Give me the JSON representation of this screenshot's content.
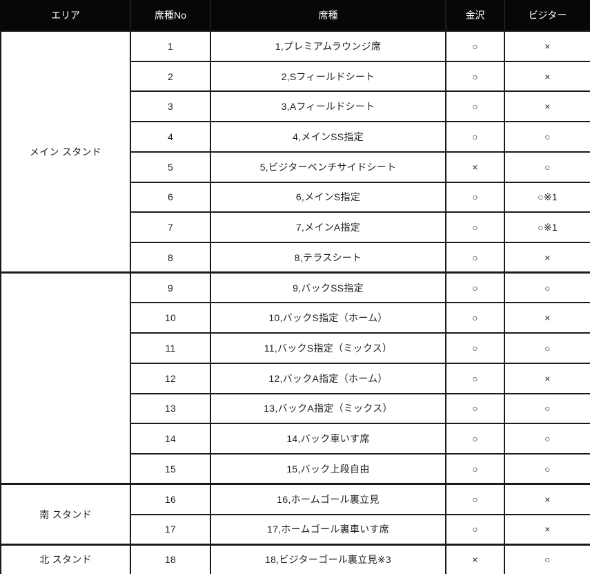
{
  "header": {
    "columns": [
      "エリア",
      "席種No",
      "席種",
      "金沢",
      "ビジター"
    ]
  },
  "areas": [
    {
      "label": "メイン スタンド",
      "row_span": 8
    },
    {
      "label": "",
      "row_span": 7
    },
    {
      "label": "南 スタンド",
      "row_span": 2
    },
    {
      "label": "北 スタンド",
      "row_span": 1
    }
  ],
  "rows": [
    {
      "no": "1",
      "seat_name": "1,プレミアムラウンジ席",
      "kanazawa": "○",
      "visitor": "×"
    },
    {
      "no": "2",
      "seat_name": "2,Sフィールドシート",
      "kanazawa": "○",
      "visitor": "×"
    },
    {
      "no": "3",
      "seat_name": "3,Aフィールドシート",
      "kanazawa": "○",
      "visitor": "×"
    },
    {
      "no": "4",
      "seat_name": "4,メインSS指定",
      "kanazawa": "○",
      "visitor": "○"
    },
    {
      "no": "5",
      "seat_name": "5,ビジターベンチサイドシート",
      "kanazawa": "×",
      "visitor": "○"
    },
    {
      "no": "6",
      "seat_name": "6,メインS指定",
      "kanazawa": "○",
      "visitor": "○※1"
    },
    {
      "no": "7",
      "seat_name": "7,メインA指定",
      "kanazawa": "○",
      "visitor": "○※1"
    },
    {
      "no": "8",
      "seat_name": "8,テラスシート",
      "kanazawa": "○",
      "visitor": "×"
    },
    {
      "no": "9",
      "seat_name": "9,バックSS指定",
      "kanazawa": "○",
      "visitor": "○"
    },
    {
      "no": "10",
      "seat_name": "10,バックS指定（ホーム）",
      "kanazawa": "○",
      "visitor": "×"
    },
    {
      "no": "11",
      "seat_name": "11,バックS指定（ミックス）",
      "kanazawa": "○",
      "visitor": "○"
    },
    {
      "no": "12",
      "seat_name": "12,バックA指定（ホーム）",
      "kanazawa": "○",
      "visitor": "×"
    },
    {
      "no": "13",
      "seat_name": "13,バックA指定（ミックス）",
      "kanazawa": "○",
      "visitor": "○"
    },
    {
      "no": "14",
      "seat_name": "14,バック車いす席",
      "kanazawa": "○",
      "visitor": "○"
    },
    {
      "no": "15",
      "seat_name": "15,バック上段自由",
      "kanazawa": "○",
      "visitor": "○"
    },
    {
      "no": "16",
      "seat_name": "16,ホームゴール裏立見",
      "kanazawa": "○",
      "visitor": "×"
    },
    {
      "no": "17",
      "seat_name": "17,ホームゴール裏車いす席",
      "kanazawa": "○",
      "visitor": "×"
    },
    {
      "no": "18",
      "seat_name": "18,ビジターゴール裏立見※3",
      "kanazawa": "×",
      "visitor": "○"
    }
  ]
}
